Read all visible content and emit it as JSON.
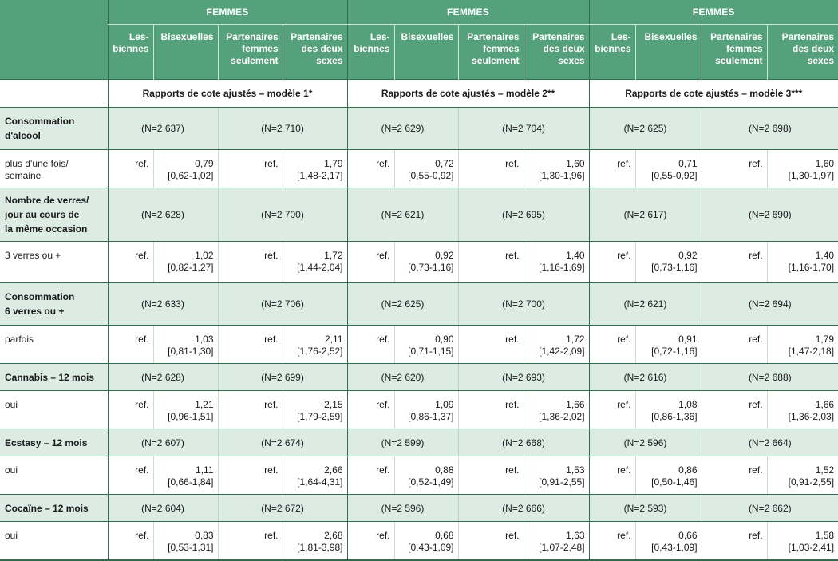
{
  "header": {
    "groups": [
      "FEMMES",
      "FEMMES",
      "FEMMES"
    ],
    "subheaders": [
      [
        "Les-",
        "biennes"
      ],
      [
        "Bisexuelles"
      ],
      [
        "Partenaires",
        "femmes",
        "seulement"
      ],
      [
        "Partenaires",
        "des deux",
        "sexes"
      ]
    ],
    "models": [
      "Rapports de cote ajustés – modèle 1*",
      "Rapports de cote ajustés – modèle 2**",
      "Rapports de cote ajustés – modèle 3***"
    ]
  },
  "rows": [
    {
      "label": [
        "Consommation",
        "d'alcool"
      ],
      "n": [
        "(N=2 637)",
        "(N=2 710)",
        "(N=2 629)",
        "(N=2 704)",
        "(N=2 625)",
        "(N=2 698)"
      ],
      "data_label": [
        "plus d'une fois/",
        "semaine"
      ],
      "cells": [
        [
          "ref."
        ],
        [
          "0,79",
          "[0,62-1,02]"
        ],
        [
          "ref."
        ],
        [
          "1,79",
          "[1,48-2,17]"
        ],
        [
          "ref."
        ],
        [
          "0,72",
          "[0,55-0,92]"
        ],
        [
          "ref."
        ],
        [
          "1,60",
          "[1,30-1,96]"
        ],
        [
          "ref."
        ],
        [
          "0,71",
          "[0,55-0,92]"
        ],
        [
          "ref."
        ],
        [
          "1,60",
          "[1,30-1,97]"
        ]
      ]
    },
    {
      "label": [
        "Nombre de verres/",
        "jour au cours de",
        "la même occasion"
      ],
      "n": [
        "(N=2 628)",
        "(N=2 700)",
        "(N=2 621)",
        "(N=2 695)",
        "(N=2 617)",
        "(N=2 690)"
      ],
      "data_label": [
        "3 verres ou +"
      ],
      "cells": [
        [
          "ref."
        ],
        [
          "1,02",
          "[0,82-1,27]"
        ],
        [
          "ref."
        ],
        [
          "1,72",
          "[1,44-2,04]"
        ],
        [
          "ref."
        ],
        [
          "0,92",
          "[0,73-1,16]"
        ],
        [
          "ref."
        ],
        [
          "1,40",
          "[1,16-1,69]"
        ],
        [
          "ref."
        ],
        [
          "0,92",
          "[0,73-1,16]"
        ],
        [
          "ref."
        ],
        [
          "1,40",
          "[1,16-1,70]"
        ]
      ]
    },
    {
      "label": [
        "Consommation",
        "6 verres ou +"
      ],
      "n": [
        "(N=2 633)",
        "(N=2 706)",
        "(N=2 625)",
        "(N=2 700)",
        "(N=2 621)",
        "(N=2 694)"
      ],
      "data_label": [
        "parfois"
      ],
      "cells": [
        [
          "ref."
        ],
        [
          "1,03",
          "[0,81-1,30]"
        ],
        [
          "ref."
        ],
        [
          "2,11",
          "[1,76-2,52]"
        ],
        [
          "ref."
        ],
        [
          "0,90",
          "[0,71-1,15]"
        ],
        [
          "ref."
        ],
        [
          "1,72",
          "[1,42-2,09]"
        ],
        [
          "ref."
        ],
        [
          "0,91",
          "[0,72-1,16]"
        ],
        [
          "ref."
        ],
        [
          "1,79",
          "[1,47-2,18]"
        ]
      ]
    },
    {
      "label": [
        "Cannabis – 12 mois"
      ],
      "n": [
        "(N=2 628)",
        "(N=2 699)",
        "(N=2 620)",
        "(N=2 693)",
        "(N=2 616)",
        "(N=2 688)"
      ],
      "data_label": [
        "oui"
      ],
      "cells": [
        [
          "ref."
        ],
        [
          "1,21",
          "[0,96-1,51]"
        ],
        [
          "ref."
        ],
        [
          "2,15",
          "[1,79-2,59]"
        ],
        [
          "ref."
        ],
        [
          "1,09",
          "[0,86-1,37]"
        ],
        [
          "ref."
        ],
        [
          "1,66",
          "[1,36-2,02]"
        ],
        [
          "ref."
        ],
        [
          "1,08",
          "[0,86-1,36]"
        ],
        [
          "ref."
        ],
        [
          "1,66",
          "[1,36-2,03]"
        ]
      ]
    },
    {
      "label": [
        "Ecstasy – 12 mois"
      ],
      "n": [
        "(N=2 607)",
        "(N=2 674)",
        "(N=2 599)",
        "(N=2 668)",
        "(N=2 596)",
        "(N=2 664)"
      ],
      "data_label": [
        "oui"
      ],
      "cells": [
        [
          "ref."
        ],
        [
          "1,11",
          "[0,66-1,84]"
        ],
        [
          "ref."
        ],
        [
          "2,66",
          "[1,64-4,31]"
        ],
        [
          "ref."
        ],
        [
          "0,88",
          "[0,52-1,49]"
        ],
        [
          "ref."
        ],
        [
          "1,53",
          "[0,91-2,55]"
        ],
        [
          "ref."
        ],
        [
          "0,86",
          "[0,50-1,46]"
        ],
        [
          "ref."
        ],
        [
          "1,52",
          "[0,91-2,55]"
        ]
      ]
    },
    {
      "label": [
        "Cocaïne – 12 mois"
      ],
      "n": [
        "(N=2 604)",
        "(N=2 672)",
        "(N=2 596)",
        "(N=2 666)",
        "(N=2 593)",
        "(N=2 662)"
      ],
      "data_label": [
        "oui"
      ],
      "cells": [
        [
          "ref."
        ],
        [
          "0,83",
          "[0,53-1,31]"
        ],
        [
          "ref."
        ],
        [
          "2,68",
          "[1,81-3,98]"
        ],
        [
          "ref."
        ],
        [
          "0,68",
          "[0,43-1,09]"
        ],
        [
          "ref."
        ],
        [
          "1,63",
          "[1,07-2,48]"
        ],
        [
          "ref."
        ],
        [
          "0,66",
          "[0,43-1,09]"
        ],
        [
          "ref."
        ],
        [
          "1,58",
          "[1,03-2,41]"
        ]
      ]
    }
  ]
}
